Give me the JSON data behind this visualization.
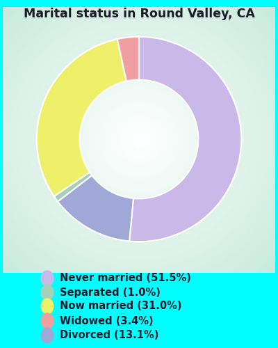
{
  "title": "Marital status in Round Valley, CA",
  "slices": [
    51.5,
    13.1,
    1.0,
    31.0,
    3.4
  ],
  "colors": [
    "#c9b8e8",
    "#a0a8d8",
    "#a8d0b8",
    "#eef06a",
    "#f0a0a0"
  ],
  "labels": [
    "Never married (51.5%)",
    "Separated (1.0%)",
    "Now married (31.0%)",
    "Widowed (3.4%)",
    "Divorced (13.1%)"
  ],
  "legend_colors": [
    "#c9b8e8",
    "#a8d0b8",
    "#eef06a",
    "#f0a0a0",
    "#a0a8d8"
  ],
  "bg_color_outer": "#00ffff",
  "chart_bg_center": "#ffffff",
  "chart_bg_edge": "#c8e8d8",
  "title_color": "#1a1a2a",
  "title_fontsize": 12.5,
  "legend_fontsize": 10.5,
  "startangle": 90,
  "donut_width": 0.42
}
